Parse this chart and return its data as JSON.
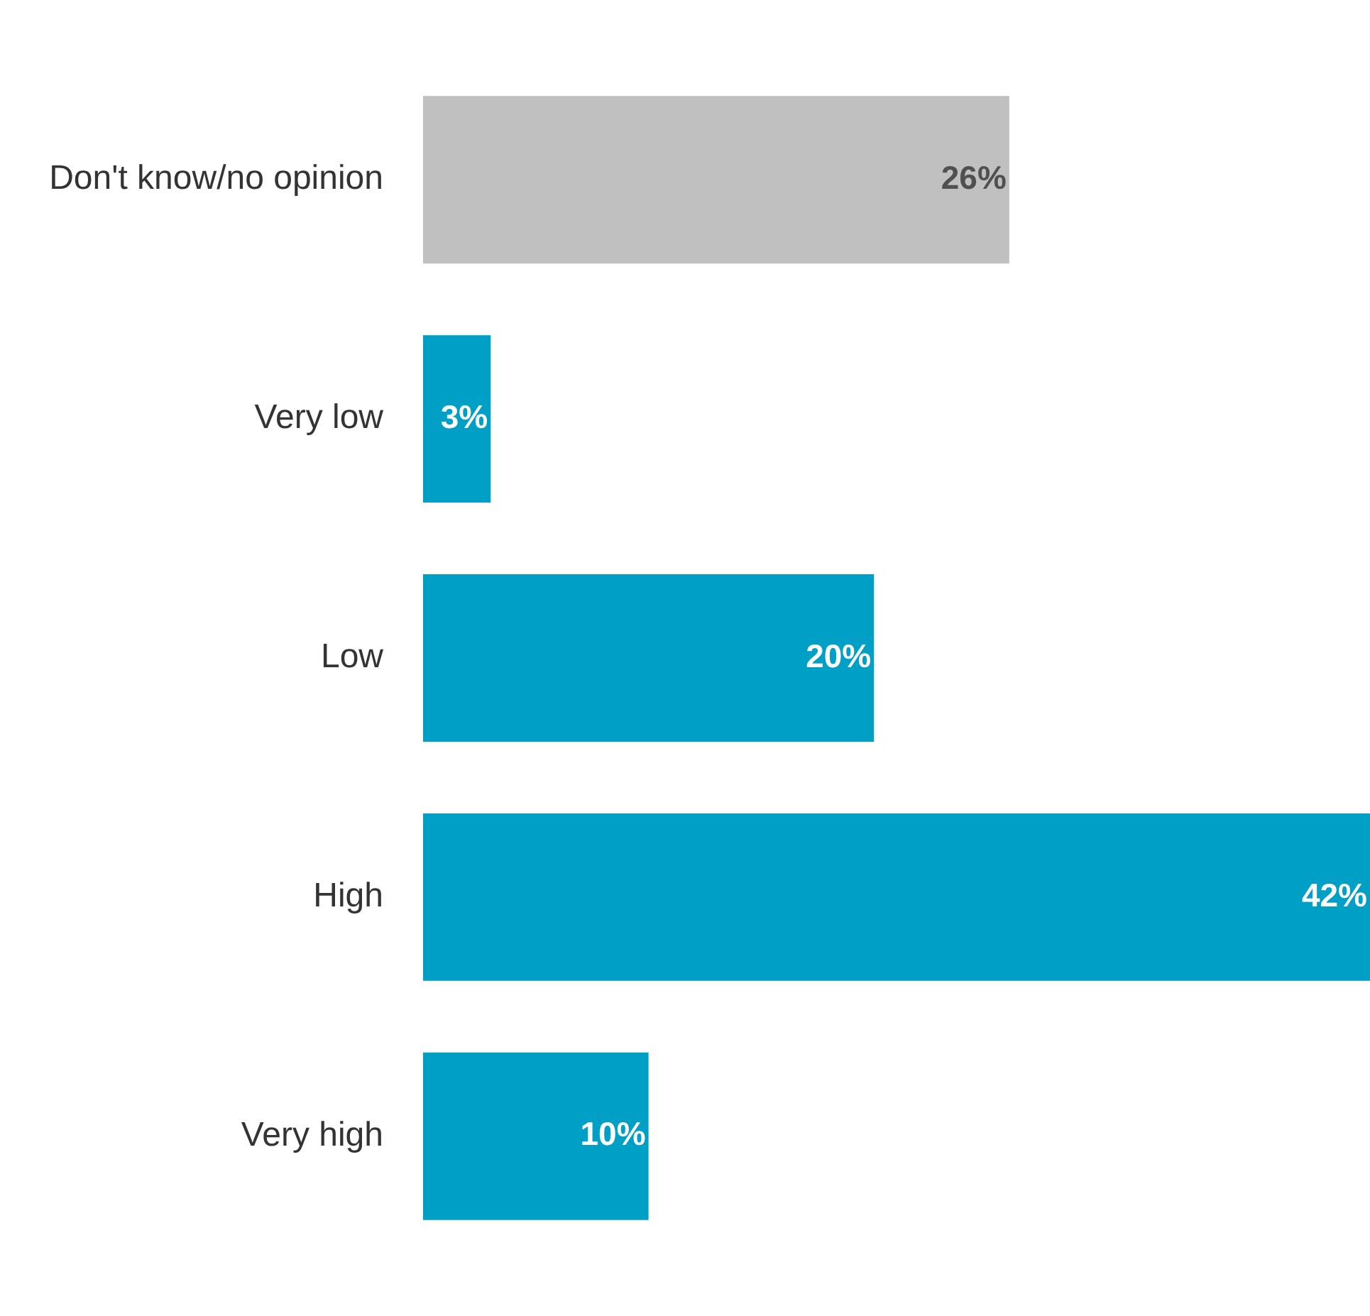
{
  "chart_data": {
    "type": "bar",
    "orientation": "horizontal",
    "categories": [
      "Don't know/no opinion",
      "Very low",
      "Low",
      "High",
      "Very high"
    ],
    "values": [
      26,
      3,
      20,
      42,
      10
    ],
    "colors": [
      "#c0c0c0",
      "#00a0c6",
      "#00a0c6",
      "#00a0c6",
      "#00a0c6"
    ],
    "value_labels": [
      "26%",
      "3%",
      "20%",
      "42%",
      "10%"
    ],
    "grid": false,
    "legend": false
  }
}
